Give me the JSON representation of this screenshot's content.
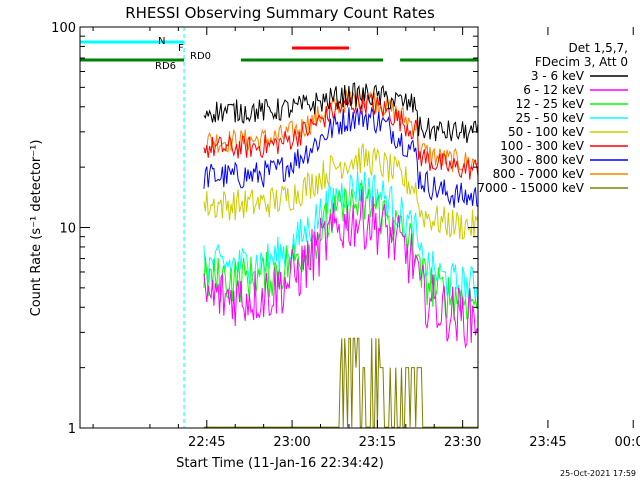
{
  "chart_data": {
    "type": "line",
    "title": "RHESSI Observing Summary Count Rates",
    "ylabel": "Count Rate (s⁻¹ detector⁻¹)",
    "xlabel": "Start Time (11-Jan-16 22:34:42)",
    "footer": "25-Oct-2021 17:59",
    "y_scale": "log",
    "ylim": [
      1,
      100
    ],
    "xlim_minutes": [
      22.7,
      92.7
    ],
    "y_ticks": [
      {
        "v": 1,
        "label": "1"
      },
      {
        "v": 10,
        "label": "10"
      },
      {
        "v": 100,
        "label": "100"
      }
    ],
    "x_ticks": [
      {
        "t": 45,
        "label": "22:45"
      },
      {
        "t": 60,
        "label": "23:00"
      },
      {
        "t": 75,
        "label": "23:15"
      },
      {
        "t": 90,
        "label": "23:30"
      },
      {
        "t": 105,
        "label": "23:45"
      },
      {
        "t": 120,
        "label": "00:00"
      }
    ],
    "legend_header": [
      "Det 1,5,7,",
      "FDecim 3, Att 0"
    ],
    "legend_position": "right",
    "series": [
      {
        "name": "3 - 6 keV",
        "color": "#000000",
        "level": 38,
        "peak": 46,
        "spread": 0.06
      },
      {
        "name": "6 - 12 keV",
        "color": "#ff00ff",
        "level": 4.5,
        "peak": 11,
        "spread": 0.15
      },
      {
        "name": "12 - 25 keV",
        "color": "#00ff00",
        "level": 5.5,
        "peak": 13,
        "spread": 0.12
      },
      {
        "name": "25 - 50 keV",
        "color": "#00ffff",
        "level": 6.5,
        "peak": 16,
        "spread": 0.1
      },
      {
        "name": "50 - 100 keV",
        "color": "#cccc00",
        "level": 13,
        "peak": 22,
        "spread": 0.08
      },
      {
        "name": "100 - 300 keV",
        "color": "#ff0000",
        "level": 25,
        "peak": 42,
        "spread": 0.06
      },
      {
        "name": "300 - 800 keV",
        "color": "#0000ff",
        "level": 18,
        "peak": 36,
        "spread": 0.07
      },
      {
        "name": "800 - 7000 keV",
        "color": "#ff8000",
        "level": 27,
        "peak": 44,
        "spread": 0.06
      },
      {
        "name": "7000 - 15000 keV",
        "color": "#808000",
        "level": 1.3,
        "peak": 2.5,
        "spread": 0.3
      }
    ],
    "status_bars": [
      {
        "label": "N",
        "color": "#00ffff",
        "segments": [
          [
            22.7,
            41
          ],
          [
            102,
            117
          ]
        ]
      },
      {
        "label": "F",
        "color": "#ff0000",
        "segments": [
          [
            60,
            70
          ]
        ]
      },
      {
        "label": "RD0",
        "color": "#008000",
        "segments": []
      },
      {
        "label": "RD6",
        "color": "#008000",
        "segments": [
          [
            22.7,
            41
          ],
          [
            51,
            76
          ],
          [
            79,
            99
          ],
          [
            100,
            116
          ],
          [
            118,
            122
          ]
        ]
      }
    ],
    "vertical_markers": [
      {
        "t": 41,
        "style": "dashed",
        "color": "#00ffff"
      },
      {
        "t": 102,
        "style": "solid",
        "color": "#00ffff"
      },
      {
        "t": 111,
        "style": "solid",
        "color": "#00ffff"
      },
      {
        "t": 117,
        "style": "dashed",
        "color": "#00ffff"
      }
    ],
    "grid": false
  }
}
